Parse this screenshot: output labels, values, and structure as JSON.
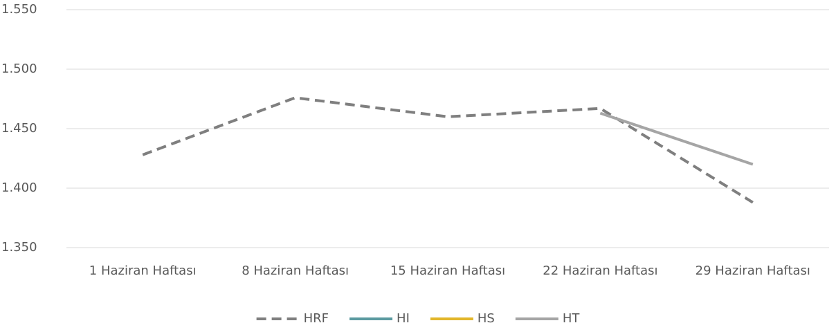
{
  "chart_data": {
    "type": "line",
    "categories": [
      "1 Haziran Haftası",
      "8 Haziran Haftası",
      "15 Haziran Haftası",
      "22 Haziran Haftası",
      "29 Haziran Haftası"
    ],
    "series": [
      {
        "name": "HRF",
        "color": "#7f7f7f",
        "dashed": true,
        "values": [
          1428,
          1476,
          1460,
          1467,
          1388
        ]
      },
      {
        "name": "HI",
        "color": "#5b9aa0",
        "values": [
          null,
          null,
          null,
          null,
          null
        ]
      },
      {
        "name": "HS",
        "color": "#e2b62a",
        "values": [
          null,
          null,
          null,
          null,
          null
        ]
      },
      {
        "name": "HT",
        "color": "#a5a5a5",
        "values": [
          null,
          null,
          null,
          1463,
          1420
        ]
      }
    ],
    "ylim": [
      1350,
      1550
    ],
    "yticks": [
      {
        "value": 1350,
        "label": "1.350"
      },
      {
        "value": 1400,
        "label": "1.400"
      },
      {
        "value": 1450,
        "label": "1.450"
      },
      {
        "value": 1500,
        "label": "1.500"
      },
      {
        "value": 1550,
        "label": "1.550"
      }
    ],
    "grid": true,
    "legend": "bottom"
  }
}
